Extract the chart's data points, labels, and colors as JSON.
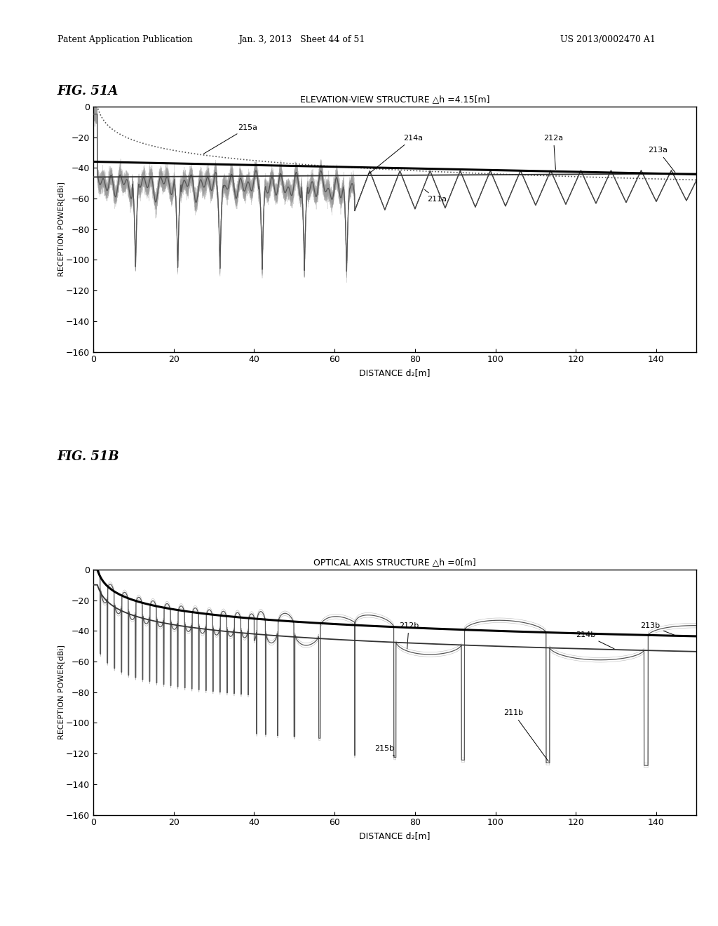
{
  "fig_label_a": "FIG. 51A",
  "fig_label_b": "FIG. 51B",
  "title_a": "ELEVATION-VIEW STRUCTURE △h =4.15[m]",
  "title_b": "OPTICAL AXIS STRUCTURE △h =0[m]",
  "xlabel": "DISTANCE d₂[m]",
  "ylabel": "RECEPTION POWER[dBi]",
  "xlim": [
    0,
    150
  ],
  "ylim": [
    -160,
    0
  ],
  "xticks": [
    0,
    20,
    40,
    60,
    80,
    100,
    120,
    140
  ],
  "yticks": [
    0,
    -20,
    -40,
    -60,
    -80,
    -100,
    -120,
    -140,
    -160
  ],
  "header_left": "Patent Application Publication",
  "header_mid": "Jan. 3, 2013   Sheet 44 of 51",
  "header_right": "US 2013/0002470 A1",
  "bg_color": "#ffffff"
}
